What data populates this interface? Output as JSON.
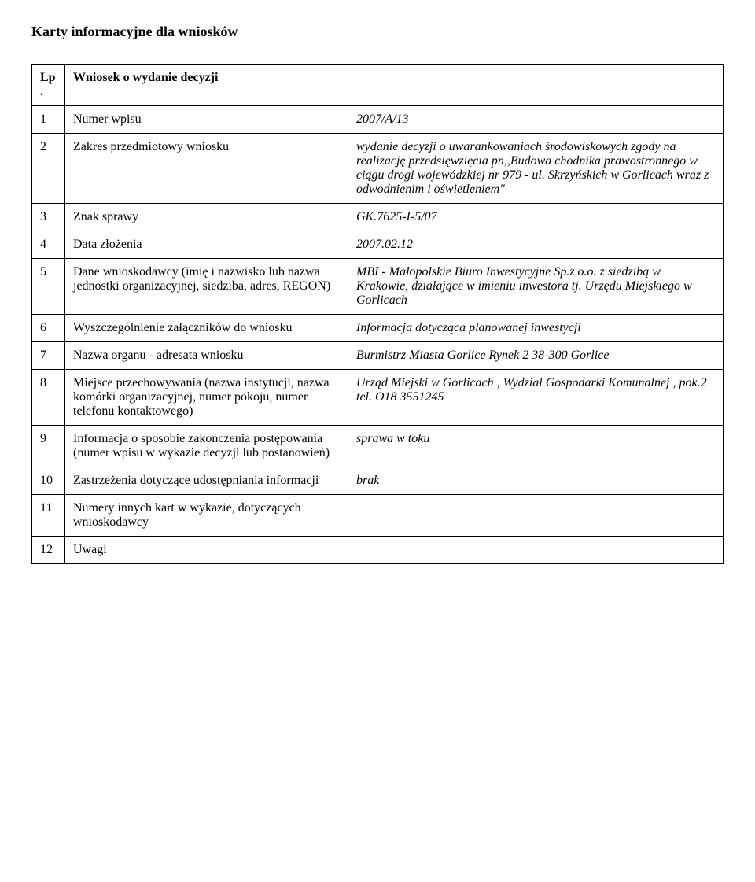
{
  "page_title": "Karty informacyjne dla wniosków",
  "header": {
    "lp": "Lp.",
    "heading": "Wniosek o wydanie decyzji"
  },
  "rows": [
    {
      "n": "1",
      "label": "Numer wpisu",
      "value": "2007/A/13",
      "value_italic": true
    },
    {
      "n": "2",
      "label": "Zakres przedmiotowy wniosku",
      "value": "wydanie decyzji o uwarankowaniach środowiskowych zgody na realizację przedsięwzięcia pn,,Budowa chodnika prawostronnego w ciągu drogi wojewódzkiej nr 979 - ul. Skrzyńskich w Gorlicach wraz z odwodnienim i oświetleniem\"",
      "value_italic": true
    },
    {
      "n": "3",
      "label": "Znak sprawy",
      "value": "GK.7625-I-5/07",
      "value_italic": true
    },
    {
      "n": "4",
      "label": "Data złożenia",
      "value": "2007.02.12",
      "value_italic": true
    },
    {
      "n": "5",
      "label": "Dane wnioskodawcy (imię i nazwisko lub nazwa jednostki organizacyjnej, siedziba, adres, REGON)",
      "value": "MBI - Małopolskie Biuro Inwestycyjne Sp.z o.o. z siedzibą w Krakowie, działające w imieniu inwestora tj. Urzędu Miejskiego w Gorlicach",
      "value_italic": true
    },
    {
      "n": "6",
      "label": "Wyszczególnienie załączników do wniosku",
      "value": "Informacja dotycząca planowanej inwestycji",
      "value_italic": true
    },
    {
      "n": "7",
      "label": "Nazwa organu - adresata wniosku",
      "value": "Burmistrz Miasta Gorlice Rynek 2 38-300 Gorlice",
      "value_italic": true
    },
    {
      "n": "8",
      "label": "Miejsce przechowywania (nazwa instytucji, nazwa komórki organizacyjnej, numer pokoju, numer telefonu kontaktowego)",
      "value": "Urząd Miejski w Gorlicach , Wydział Gospodarki Komunalnej , pok.2  tel. O18 3551245",
      "value_italic": true
    },
    {
      "n": "9",
      "label": "Informacja o sposobie zakończenia postępowania (numer wpisu w wykazie decyzji lub postanowień)",
      "value": "sprawa w toku",
      "value_italic": true
    },
    {
      "n": "10",
      "label": "Zastrzeżenia dotyczące udostępniania informacji",
      "value": "brak",
      "value_italic": true
    },
    {
      "n": "11",
      "label": "Numery innych kart w wykazie, dotyczących wnioskodawcy",
      "value": "",
      "value_italic": false
    },
    {
      "n": "12",
      "label": "Uwagi",
      "value": "",
      "value_italic": false
    }
  ]
}
